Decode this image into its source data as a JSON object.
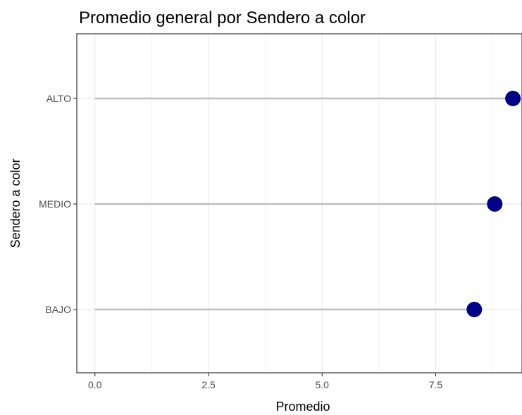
{
  "chart_data": {
    "type": "lollipop",
    "title": "Promedio general por Sendero a color",
    "xlabel": "Promedio",
    "ylabel": "Sendero a color",
    "categories": [
      "BAJO",
      "MEDIO",
      "ALTO"
    ],
    "values": [
      8.35,
      8.8,
      9.2
    ],
    "xlim": [
      -0.4,
      9.4
    ],
    "x_ticks": [
      0.0,
      2.5,
      5.0,
      7.5
    ],
    "x_tick_labels": [
      "0.0",
      "2.5",
      "5.0",
      "7.5"
    ],
    "grid": true,
    "orientation": "horizontal",
    "colors": {
      "point": "#00008B",
      "segment": "#BEBEBE",
      "grid": "#EBEBEB",
      "panel_border": "#333333"
    }
  }
}
